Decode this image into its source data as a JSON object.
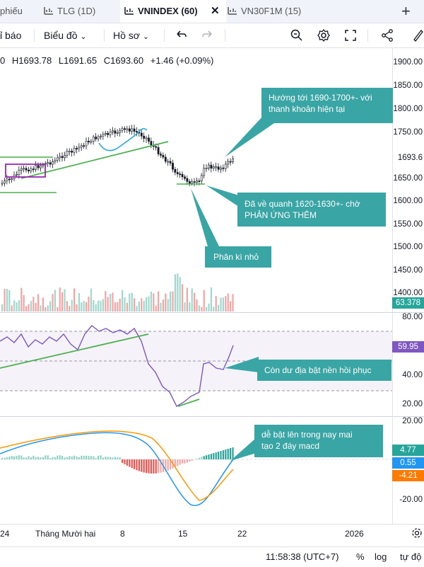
{
  "tabs": [
    {
      "label": "phiếu",
      "active": false
    },
    {
      "label": "TLG (1D)",
      "active": false
    },
    {
      "label": "VNINDEX (60)",
      "active": true
    },
    {
      "label": "VN30F1M (15)",
      "active": false
    }
  ],
  "toolbar": {
    "report_label": "ỉ báo",
    "chart_label": "Biểu đồ",
    "profile_label": "Hồ sơ"
  },
  "legend": {
    "open": "0",
    "high": "H1693.78",
    "low": "L1691.65",
    "close": "C1693.60",
    "change": "+1.46 (+0.09%)"
  },
  "price_axis": [
    "1900.00",
    "1850.00",
    "1800.00",
    "1750.00",
    "1693.6",
    "1650.00",
    "1600.00",
    "1550.00",
    "1500.00",
    "1450.00",
    "1400.00"
  ],
  "volume_badge": "63.378",
  "rsi_axis": [
    "80.00",
    "40.00",
    "20.00"
  ],
  "rsi_badge": "59.95",
  "macd_axis": [
    "20.00",
    "-20.00"
  ],
  "macd_badges": {
    "hist": "4.77",
    "macd": "0.55",
    "signal": "-4.21"
  },
  "annotations": {
    "target": [
      "Hướng tới 1690-1700+- với",
      "thanh khoản hiện tại"
    ],
    "support": [
      "Đã về quanh 1620-1630+- chờ",
      "PHẢN ỨNG THÊM"
    ],
    "divergence": "Phân kì nhỏ",
    "rsi_note": "Còn dư địa bật nền hồi phục",
    "macd_note": [
      "dễ bật lên trong nay mai",
      "tạo 2 đáy macd"
    ]
  },
  "time_axis": [
    "24",
    "Tháng Mười hai",
    "8",
    "15",
    "22",
    "2026"
  ],
  "footer": {
    "time": "11:58:38 (UTC+7)",
    "percent": "%",
    "log": "log",
    "auto": "tự độ"
  },
  "colors": {
    "up": "#26a69a",
    "down": "#ef5350",
    "accent": "#3aa5a5",
    "rsi": "#7e57c2",
    "trend": "#4caf50",
    "macd": "#2196f3",
    "signal": "#ff9800"
  }
}
